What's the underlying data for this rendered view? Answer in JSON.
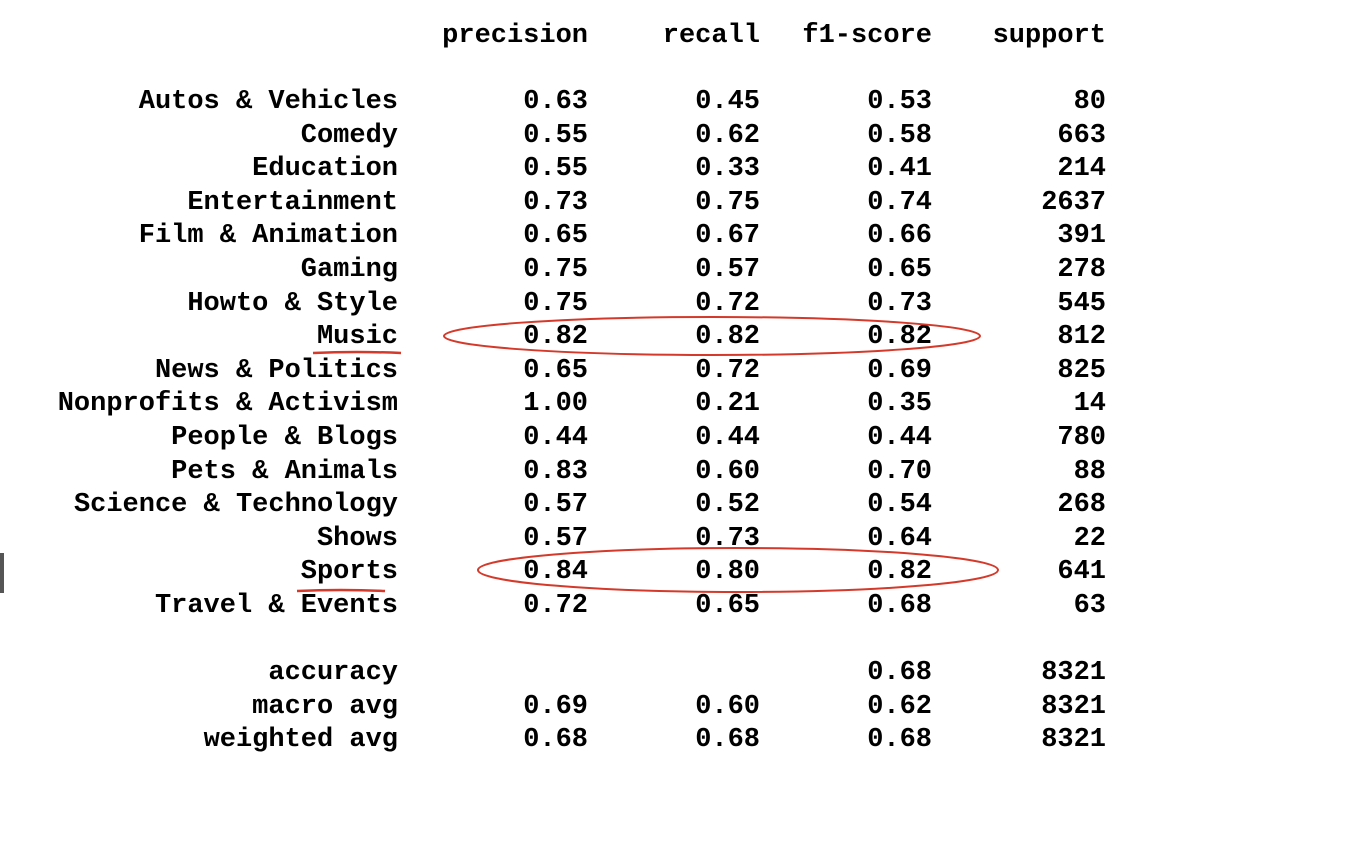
{
  "header": {
    "precision": "precision",
    "recall": "recall",
    "f1": "f1-score",
    "support": "support"
  },
  "rows": [
    {
      "label": "Autos & Vehicles",
      "precision": "0.63",
      "recall": "0.45",
      "f1": "0.53",
      "support": "80"
    },
    {
      "label": "Comedy",
      "precision": "0.55",
      "recall": "0.62",
      "f1": "0.58",
      "support": "663"
    },
    {
      "label": "Education",
      "precision": "0.55",
      "recall": "0.33",
      "f1": "0.41",
      "support": "214"
    },
    {
      "label": "Entertainment",
      "precision": "0.73",
      "recall": "0.75",
      "f1": "0.74",
      "support": "2637"
    },
    {
      "label": "Film & Animation",
      "precision": "0.65",
      "recall": "0.67",
      "f1": "0.66",
      "support": "391"
    },
    {
      "label": "Gaming",
      "precision": "0.75",
      "recall": "0.57",
      "f1": "0.65",
      "support": "278"
    },
    {
      "label": "Howto & Style",
      "precision": "0.75",
      "recall": "0.72",
      "f1": "0.73",
      "support": "545"
    },
    {
      "label": "Music",
      "precision": "0.82",
      "recall": "0.82",
      "f1": "0.82",
      "support": "812"
    },
    {
      "label": "News & Politics",
      "precision": "0.65",
      "recall": "0.72",
      "f1": "0.69",
      "support": "825"
    },
    {
      "label": "Nonprofits & Activism",
      "precision": "1.00",
      "recall": "0.21",
      "f1": "0.35",
      "support": "14"
    },
    {
      "label": "People & Blogs",
      "precision": "0.44",
      "recall": "0.44",
      "f1": "0.44",
      "support": "780"
    },
    {
      "label": "Pets & Animals",
      "precision": "0.83",
      "recall": "0.60",
      "f1": "0.70",
      "support": "88"
    },
    {
      "label": "Science & Technology",
      "precision": "0.57",
      "recall": "0.52",
      "f1": "0.54",
      "support": "268"
    },
    {
      "label": "Shows",
      "precision": "0.57",
      "recall": "0.73",
      "f1": "0.64",
      "support": "22"
    },
    {
      "label": "Sports",
      "precision": "0.84",
      "recall": "0.80",
      "f1": "0.82",
      "support": "641"
    },
    {
      "label": "Travel & Events",
      "precision": "0.72",
      "recall": "0.65",
      "f1": "0.68",
      "support": "63"
    }
  ],
  "summary": [
    {
      "label": "accuracy",
      "precision": "",
      "recall": "",
      "f1": "0.68",
      "support": "8321"
    },
    {
      "label": "macro avg",
      "precision": "0.69",
      "recall": "0.60",
      "f1": "0.62",
      "support": "8321"
    },
    {
      "label": "weighted avg",
      "precision": "0.68",
      "recall": "0.68",
      "f1": "0.68",
      "support": "8321"
    }
  ],
  "highlights": [
    "Music",
    "Sports"
  ],
  "colors": {
    "annotation": "#d43a2a",
    "text": "#000000",
    "background": "#ffffff"
  }
}
